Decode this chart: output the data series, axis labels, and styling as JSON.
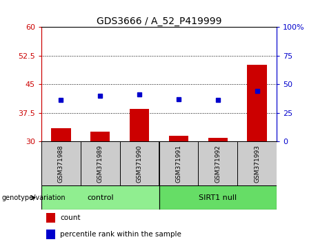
{
  "title": "GDS3666 / A_52_P419999",
  "samples": [
    "GSM371988",
    "GSM371989",
    "GSM371990",
    "GSM371991",
    "GSM371992",
    "GSM371993"
  ],
  "count_values": [
    33.5,
    32.5,
    38.5,
    31.5,
    31.0,
    50.0
  ],
  "percentile_values": [
    36.0,
    40.0,
    41.0,
    37.0,
    36.0,
    44.0
  ],
  "left_ylim": [
    30,
    60
  ],
  "right_ylim": [
    0,
    100
  ],
  "left_yticks": [
    30,
    37.5,
    45,
    52.5,
    60
  ],
  "right_yticks": [
    0,
    25,
    50,
    75,
    100
  ],
  "hlines": [
    37.5,
    45,
    52.5
  ],
  "groups": [
    {
      "label": "control",
      "indices": [
        0,
        1,
        2
      ],
      "color": "#90EE90"
    },
    {
      "label": "SIRT1 null",
      "indices": [
        3,
        4,
        5
      ],
      "color": "#66DD66"
    }
  ],
  "bar_color": "#CC0000",
  "dot_color": "#0000CC",
  "bar_width": 0.5,
  "ylabel_left_color": "#CC0000",
  "ylabel_right_color": "#0000CC",
  "legend_items": [
    "count",
    "percentile rank within the sample"
  ],
  "genotype_label": "genotype/variation"
}
